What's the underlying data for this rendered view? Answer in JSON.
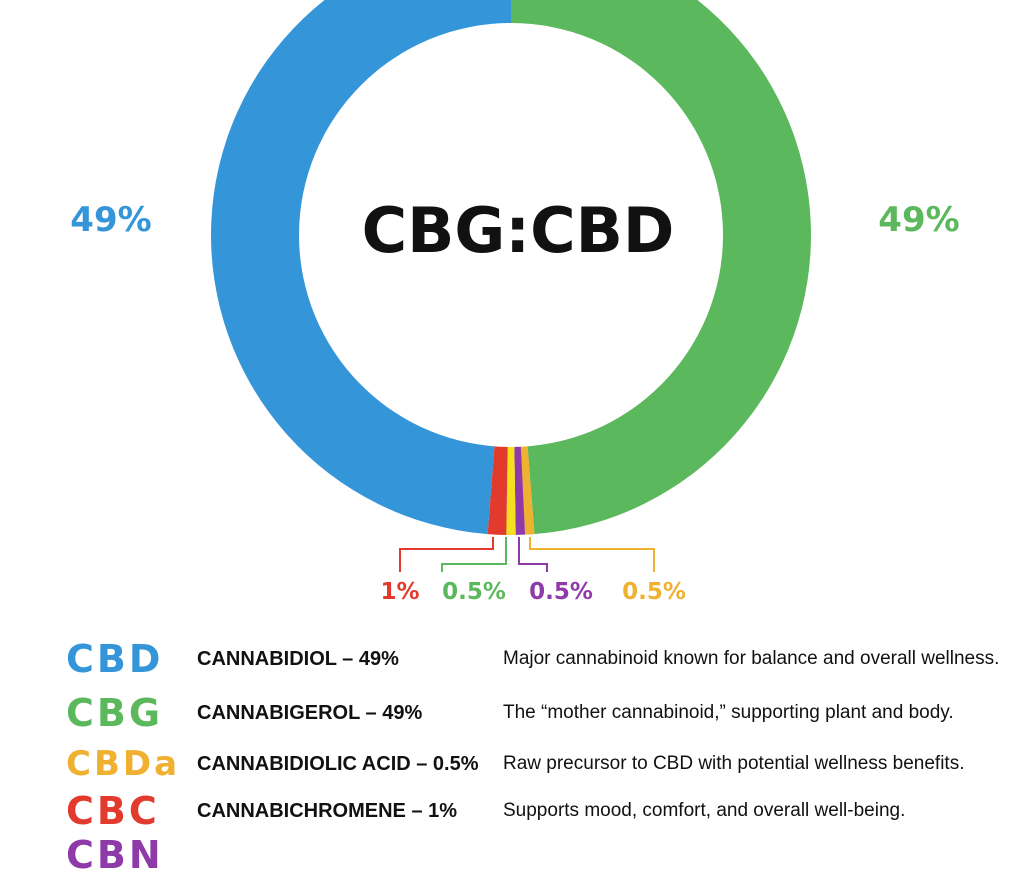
{
  "chart_data": {
    "type": "pie",
    "center_label": "CBG:CBD",
    "slices": [
      {
        "label": "CBG",
        "value": 49,
        "display": "49%",
        "color": "#5cb85c"
      },
      {
        "label": "CBDa",
        "value": 0.5,
        "display": "0.5%",
        "color": "#f0b030"
      },
      {
        "label": "CBN",
        "value": 0.5,
        "display": "0.5%",
        "color": "#8e3aa8"
      },
      {
        "label": "",
        "value": 0.5,
        "display": "0.5%",
        "color": "#f5e020"
      },
      {
        "label": "CBC",
        "value": 1,
        "display": "1%",
        "color": "#e23b2e"
      },
      {
        "label": "CBD",
        "value": 49,
        "display": "49%",
        "color": "#3595d9"
      }
    ],
    "small_labels": [
      {
        "text": "1%",
        "color": "#e23b2e"
      },
      {
        "text": "0.5%",
        "color": "#5cb85c"
      },
      {
        "text": "0.5%",
        "color": "#8e3aa8"
      },
      {
        "text": "0.5%",
        "color": "#f0b030"
      }
    ]
  },
  "legend": [
    {
      "abbr": "CBD",
      "color": "#3595d9",
      "name": "CANNABIDIOL – 49%",
      "description": "Major cannabinoid known for balance and overall wellness."
    },
    {
      "abbr": "CBG",
      "color": "#5cb85c",
      "name": "CANNABIGEROL – 49%",
      "description": "The “mother cannabinoid,” supporting plant and body."
    },
    {
      "abbr": "CBDa",
      "color": "#f0b030",
      "name": "CANNABIDIOLIC ACID – 0.5%",
      "description": "Raw precursor to CBD with potential wellness benefits."
    },
    {
      "abbr": "CBC",
      "color": "#e23b2e",
      "name": "CANNABICHROMENE – 1%",
      "description": "Supports mood, comfort, and overall well-being."
    },
    {
      "abbr": "CBN",
      "color": "#8e3aa8",
      "name": "",
      "description": ""
    }
  ]
}
